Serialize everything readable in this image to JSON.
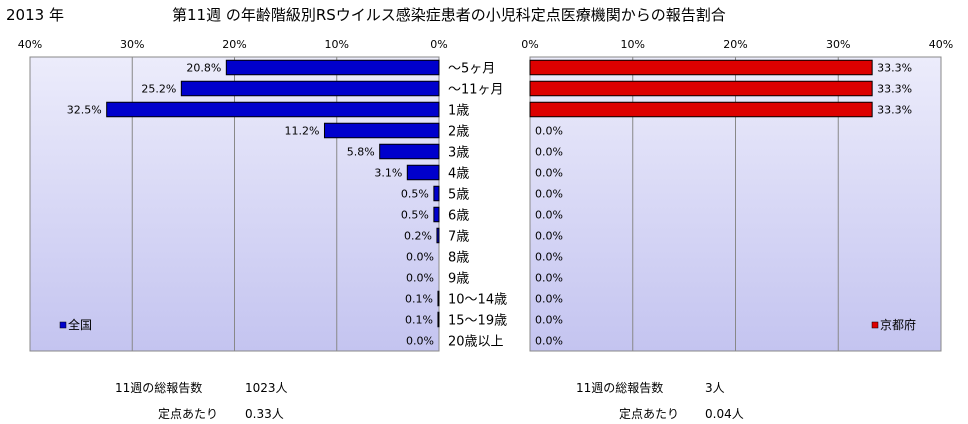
{
  "header": {
    "year": "2013 年",
    "title": "第11週 の年齢階級別RSウイルス感染症患者の小児科定点医療機関からの報告割合"
  },
  "chart_data": [
    {
      "type": "bar",
      "orientation": "horizontal",
      "direction": "right-to-left",
      "categories": [
        "～5ヶ月",
        "～11ヶ月",
        "1歳",
        "2歳",
        "3歳",
        "4歳",
        "5歳",
        "6歳",
        "7歳",
        "8歳",
        "9歳",
        "10～14歳",
        "15～19歳",
        "20歳以上"
      ],
      "series": [
        {
          "name": "全国",
          "color": "#0000cc",
          "values": [
            20.8,
            25.2,
            32.5,
            11.2,
            5.8,
            3.1,
            0.5,
            0.5,
            0.2,
            0.0,
            0.0,
            0.1,
            0.1,
            0.0
          ],
          "labels": [
            "20.8%",
            "25.2%",
            "32.5%",
            "11.2%",
            "5.8%",
            "3.1%",
            "0.5%",
            "0.5%",
            "0.2%",
            "0.0%",
            "0.0%",
            "0.1%",
            "0.1%",
            "0.0%"
          ]
        }
      ],
      "xlim": [
        0,
        40
      ],
      "ticks": [
        "40%",
        "30%",
        "20%",
        "10%",
        "0%"
      ],
      "legend": "bottom-left",
      "grid": true
    },
    {
      "type": "bar",
      "orientation": "horizontal",
      "direction": "left-to-right",
      "categories": [
        "～5ヶ月",
        "～11ヶ月",
        "1歳",
        "2歳",
        "3歳",
        "4歳",
        "5歳",
        "6歳",
        "7歳",
        "8歳",
        "9歳",
        "10～14歳",
        "15～19歳",
        "20歳以上"
      ],
      "series": [
        {
          "name": "京都府",
          "color": "#dd0000",
          "values": [
            33.3,
            33.3,
            33.3,
            0.0,
            0.0,
            0.0,
            0.0,
            0.0,
            0.0,
            0.0,
            0.0,
            0.0,
            0.0,
            0.0
          ],
          "labels": [
            "33.3%",
            "33.3%",
            "33.3%",
            "0.0%",
            "0.0%",
            "0.0%",
            "0.0%",
            "0.0%",
            "0.0%",
            "0.0%",
            "0.0%",
            "0.0%",
            "0.0%",
            "0.0%"
          ]
        }
      ],
      "xlim": [
        0,
        40
      ],
      "ticks": [
        "0%",
        "10%",
        "20%",
        "30%",
        "40%"
      ],
      "legend": "bottom-right",
      "grid": true
    }
  ],
  "summary": {
    "national": {
      "total_label": "11週の総報告数",
      "total_value": "1023人",
      "per_label": "定点あたり",
      "per_value": "0.33人"
    },
    "kyoto": {
      "total_label": "11週の総報告数",
      "total_value": "3人",
      "per_label": "定点あたり",
      "per_value": "0.04人"
    }
  },
  "colors": {
    "plot_bg_top": "#ececfb",
    "plot_bg_bottom": "#c4c4f0",
    "national_bar": "#0000cc",
    "kyoto_bar": "#dd0000"
  }
}
